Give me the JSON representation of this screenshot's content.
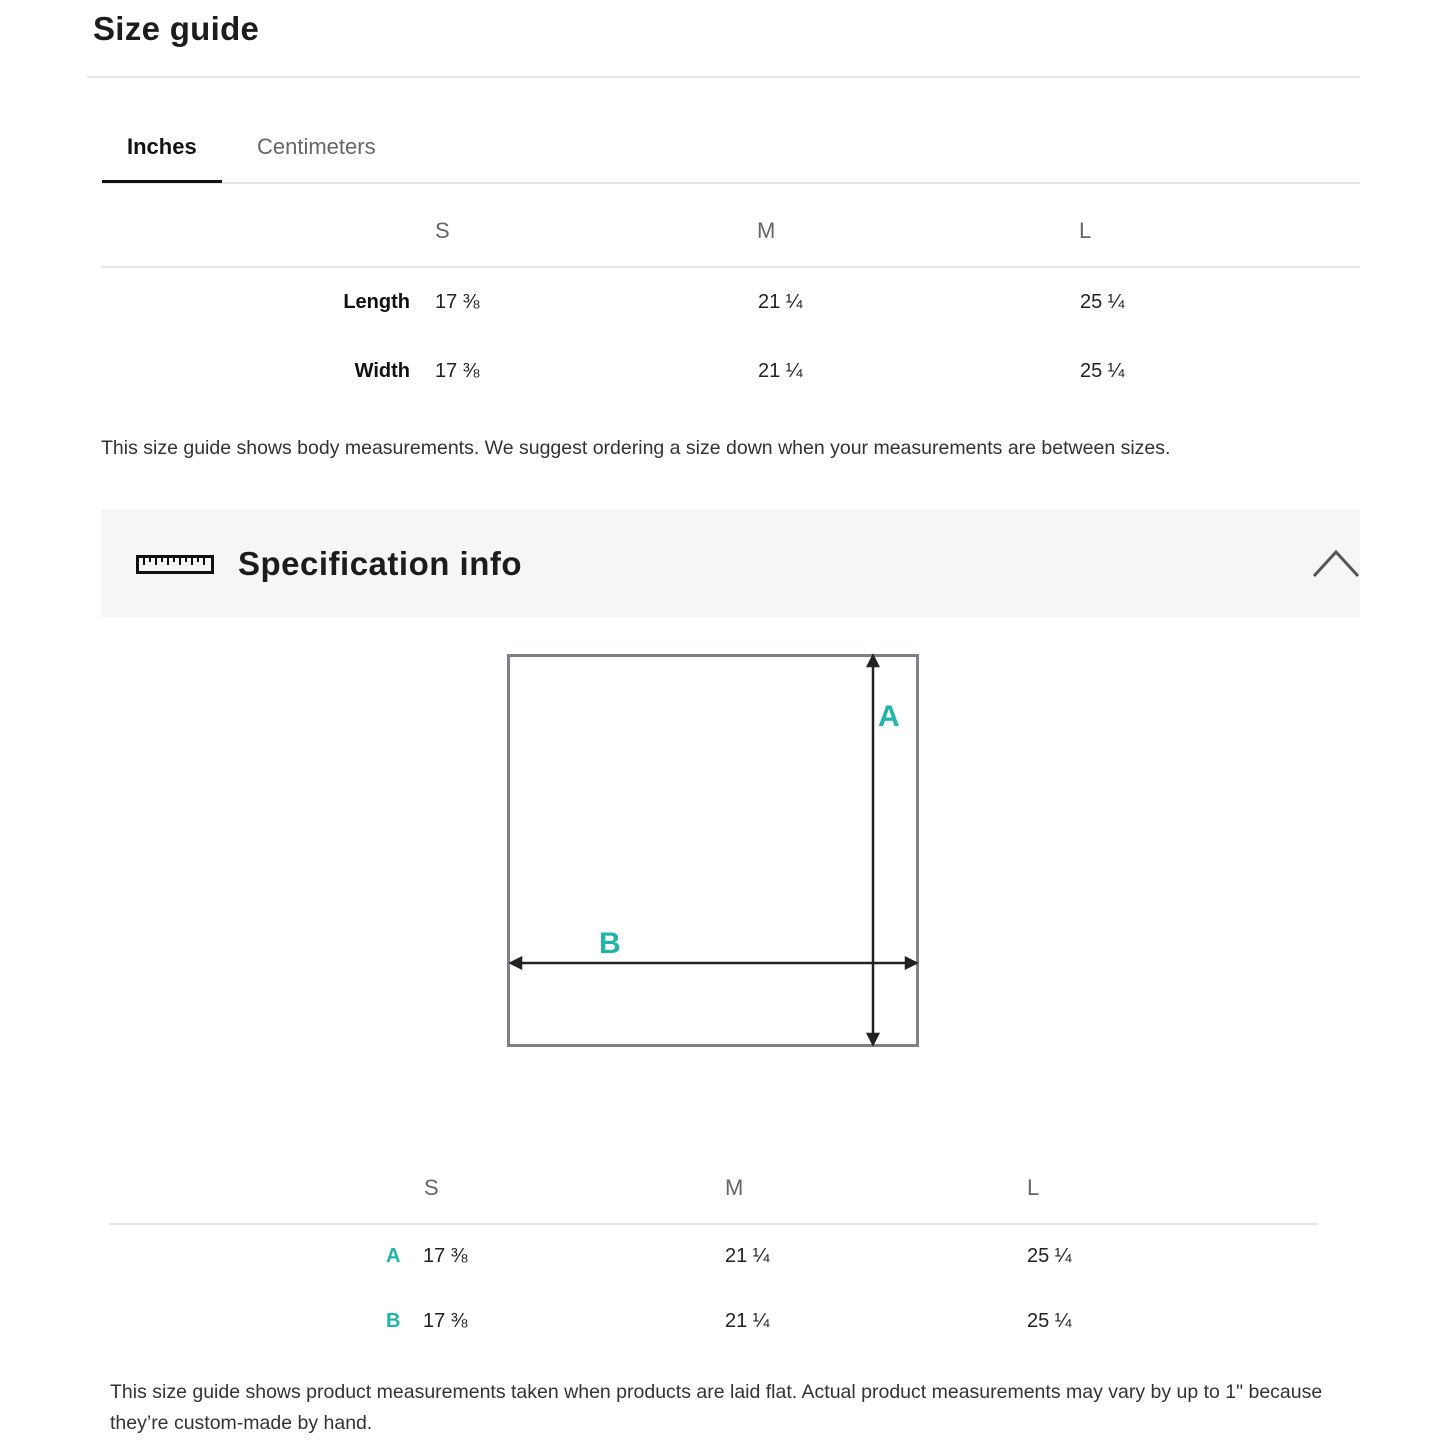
{
  "header": {
    "title": "Size guide"
  },
  "tabs": [
    {
      "label": "Inches",
      "active": true
    },
    {
      "label": "Centimeters",
      "active": false
    }
  ],
  "body_table": {
    "columns": [
      "S",
      "M",
      "L"
    ],
    "rows": [
      {
        "label": "Length",
        "values": [
          "17 ⅜",
          "21 ¼",
          "25 ¼"
        ]
      },
      {
        "label": "Width",
        "values": [
          "17 ⅜",
          "21 ¼",
          "25 ¼"
        ]
      }
    ],
    "note": "This size guide shows body measurements. We suggest ordering a size down when your measurements are between sizes."
  },
  "spec": {
    "title": "Specification info",
    "icon": "ruler-icon",
    "toggle_icon": "chevron-up-icon",
    "expanded": true,
    "diagram": {
      "label_a": "A",
      "label_b": "B",
      "accent_color": "#1fb5a8"
    },
    "columns": [
      "S",
      "M",
      "L"
    ],
    "rows": [
      {
        "label": "A",
        "values": [
          "17 ⅜",
          "21 ¼",
          "25 ¼"
        ]
      },
      {
        "label": "B",
        "values": [
          "17 ⅜",
          "21 ¼",
          "25 ¼"
        ]
      }
    ],
    "note": "This size guide shows product measurements taken when products are laid flat. Actual product measurements may vary by up to 1\" because they’re custom-made by hand."
  }
}
